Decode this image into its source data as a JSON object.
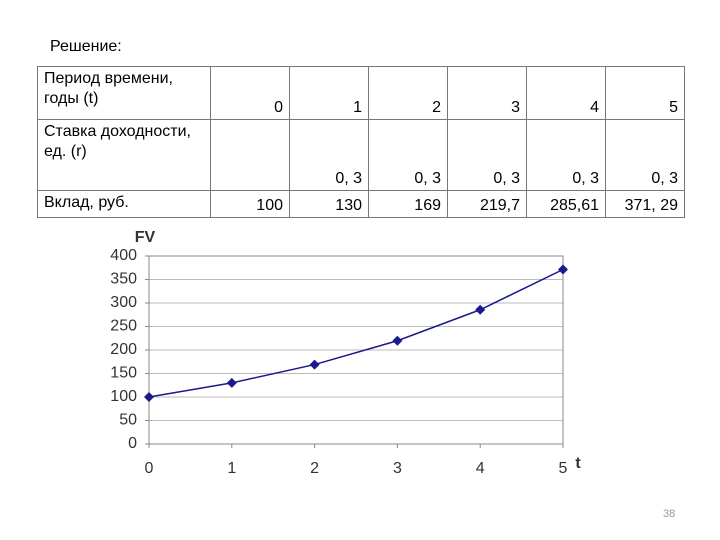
{
  "header": {
    "title": "Решение:"
  },
  "table": {
    "rows": [
      [
        "Период времени, годы (t)",
        "0",
        "1",
        "2",
        "3",
        "4",
        "5"
      ],
      [
        "Ставка доходности, ед. (r)",
        "",
        "0, 3",
        "0, 3",
        "0, 3",
        "0, 3",
        "0, 3"
      ],
      [
        "Вклад, руб.",
        "100",
        "130",
        "169",
        "219,7",
        "285,61",
        "371, 29"
      ]
    ]
  },
  "chart_data": {
    "type": "line",
    "ylabel": "FV",
    "xlabel": "t",
    "x": [
      0,
      1,
      2,
      3,
      4,
      5
    ],
    "values": [
      100,
      130,
      169,
      219.7,
      285.61,
      371.29
    ],
    "color": "#1a1a8c",
    "xlim": [
      0,
      5
    ],
    "xticks": [
      0,
      1,
      2,
      3,
      4,
      5
    ],
    "ylim": [
      0,
      400
    ],
    "yticks": [
      0,
      50,
      100,
      150,
      200,
      250,
      300,
      350,
      400
    ],
    "grid": true
  },
  "footer": {
    "page": "38"
  }
}
